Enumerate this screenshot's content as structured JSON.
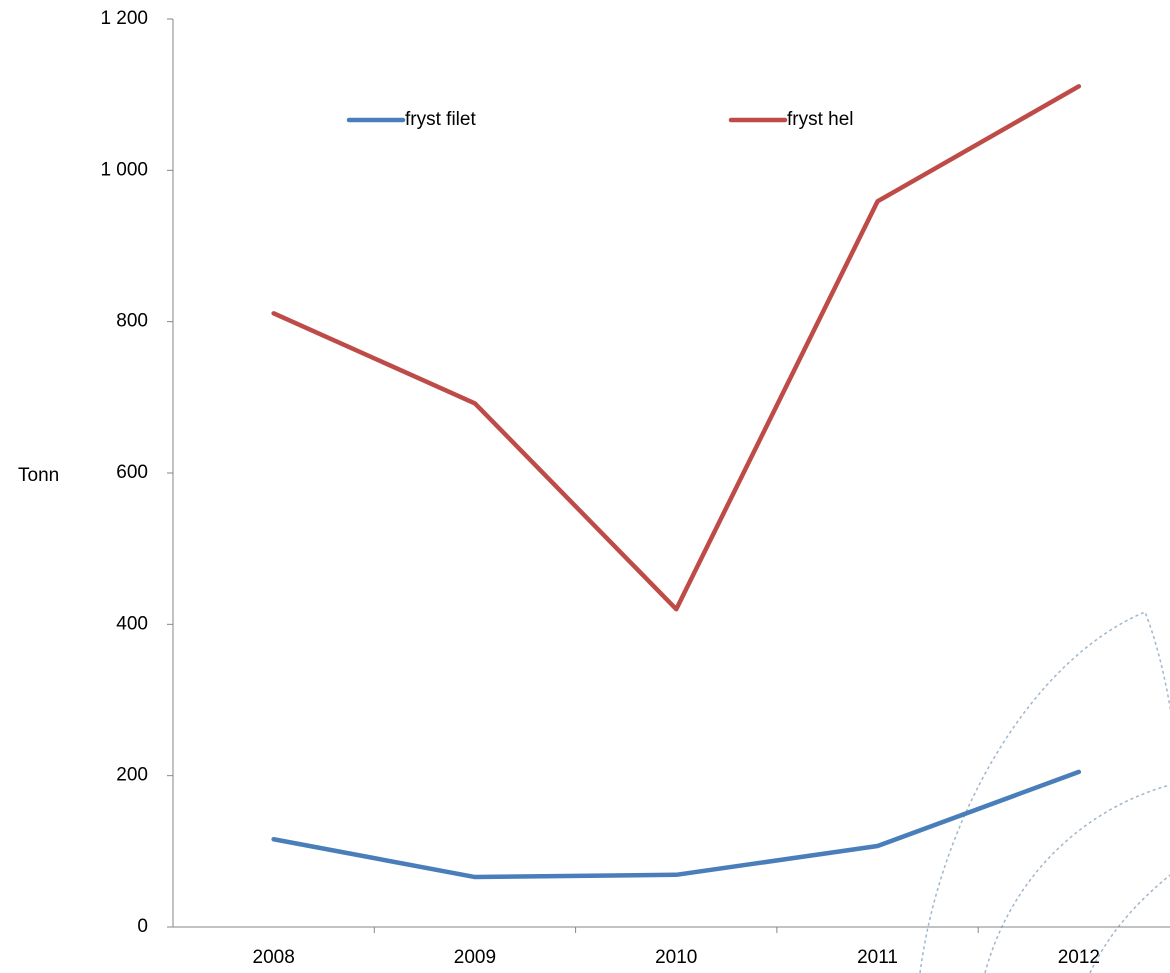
{
  "chart_data": {
    "type": "line",
    "y_label": "Tonn",
    "categories": [
      "2008",
      "2009",
      "2010",
      "2011",
      "2012"
    ],
    "series": [
      {
        "name": "fryst filet",
        "color": "#4a7ebb",
        "values": [
          116,
          66,
          69,
          107,
          205
        ]
      },
      {
        "name": "fryst hel",
        "color": "#be4b48",
        "values": [
          811,
          692,
          420,
          959,
          1111
        ]
      }
    ],
    "ylim": [
      0,
      1200
    ],
    "yticks": [
      0,
      200,
      400,
      600,
      800,
      {
        "value": 1000,
        "label": "1 000"
      },
      {
        "value": 1200,
        "label": "1 200"
      }
    ],
    "grid": false,
    "legend": "top"
  }
}
